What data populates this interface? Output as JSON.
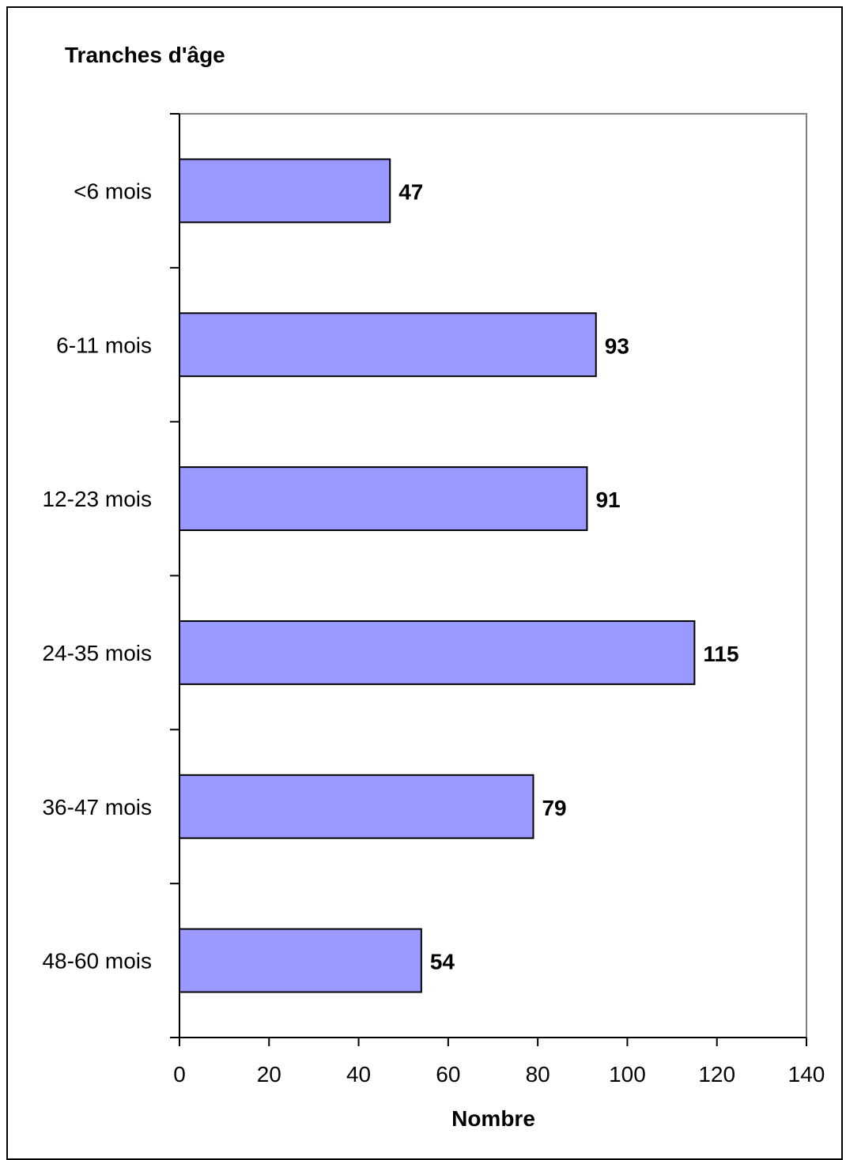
{
  "chart_data": {
    "type": "bar",
    "orientation": "horizontal",
    "title": "Tranches d'âge",
    "xlabel": "Nombre",
    "ylabel": "",
    "categories": [
      "<6 mois",
      "6-11 mois",
      "12-23 mois",
      "24-35 mois",
      "36-47 mois",
      "48-60 mois"
    ],
    "values": [
      47,
      93,
      91,
      115,
      79,
      54
    ],
    "xlim": [
      0,
      140
    ],
    "x_ticks": [
      0,
      20,
      40,
      60,
      80,
      100,
      120,
      140
    ],
    "x_tick_labels": [
      "0",
      "20",
      "40",
      "60",
      "80",
      "100",
      "120",
      "140"
    ],
    "data_labels": [
      "47",
      "93",
      "91",
      "115",
      "79",
      "54"
    ],
    "grid": false,
    "legend": "none",
    "colors": {
      "bar_fill": "#9999ff",
      "bar_stroke": "#000000",
      "plot_border": "#808080",
      "axis": "#000000"
    }
  }
}
